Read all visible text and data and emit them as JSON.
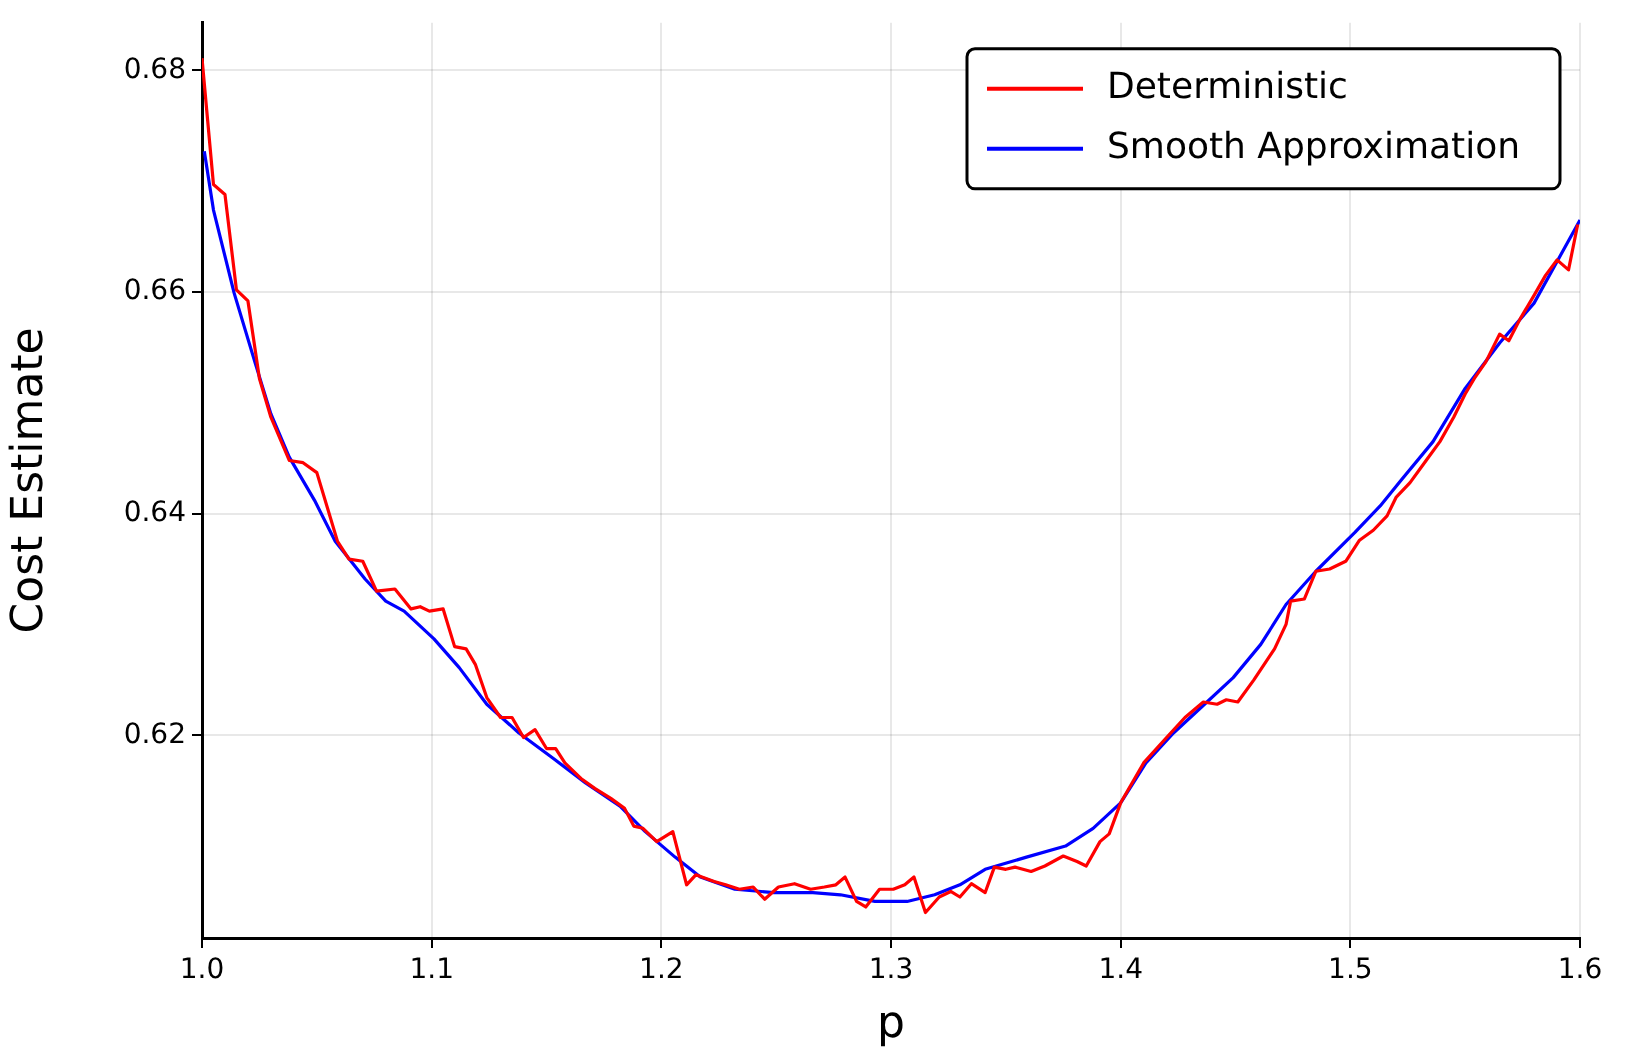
{
  "chart_data": {
    "type": "line",
    "xlabel": "p",
    "ylabel": "Cost Estimate",
    "xlim": [
      1.0,
      1.6
    ],
    "ylim": [
      0.6017,
      0.6843
    ],
    "xticks": [
      {
        "value": 1.0,
        "label": "1.0"
      },
      1.1,
      1.2,
      1.3,
      1.4,
      1.5,
      1.6
    ],
    "yticks": [
      0.62,
      0.64,
      0.66,
      0.68
    ],
    "grid": true,
    "legend": "top right",
    "marker": "none",
    "line_style": "solid",
    "series": [
      {
        "name": "Deterministic",
        "color": "#ff0000",
        "x": [
          1.0,
          1.005,
          1.01,
          1.015,
          1.02,
          1.025,
          1.03,
          1.038,
          1.044,
          1.05,
          1.059,
          1.064,
          1.07,
          1.076,
          1.084,
          1.091,
          1.095,
          1.099,
          1.105,
          1.11,
          1.115,
          1.119,
          1.124,
          1.13,
          1.135,
          1.14,
          1.145,
          1.15,
          1.154,
          1.158,
          1.165,
          1.171,
          1.178,
          1.184,
          1.188,
          1.192,
          1.198,
          1.205,
          1.211,
          1.215,
          1.223,
          1.228,
          1.234,
          1.24,
          1.245,
          1.251,
          1.258,
          1.265,
          1.271,
          1.276,
          1.28,
          1.285,
          1.289,
          1.295,
          1.301,
          1.306,
          1.31,
          1.315,
          1.321,
          1.326,
          1.33,
          1.335,
          1.341,
          1.345,
          1.35,
          1.354,
          1.361,
          1.367,
          1.375,
          1.381,
          1.385,
          1.391,
          1.395,
          1.4,
          1.41,
          1.42,
          1.428,
          1.436,
          1.442,
          1.446,
          1.451,
          1.458,
          1.467,
          1.472,
          1.474,
          1.48,
          1.485,
          1.491,
          1.498,
          1.504,
          1.51,
          1.516,
          1.52,
          1.526,
          1.533,
          1.539,
          1.545,
          1.55,
          1.554,
          1.559,
          1.565,
          1.569,
          1.574,
          1.58,
          1.585,
          1.59,
          1.595,
          1.599
        ],
        "values": [
          0.6811,
          0.6697,
          0.6688,
          0.6602,
          0.6592,
          0.6522,
          0.6487,
          0.6448,
          0.6446,
          0.6437,
          0.6375,
          0.6359,
          0.6357,
          0.633,
          0.6332,
          0.6314,
          0.6316,
          0.6312,
          0.6314,
          0.628,
          0.6278,
          0.6264,
          0.6234,
          0.6216,
          0.6216,
          0.6198,
          0.6205,
          0.6188,
          0.6188,
          0.6175,
          0.6161,
          0.6152,
          0.6143,
          0.6134,
          0.6118,
          0.6116,
          0.6104,
          0.6113,
          0.6065,
          0.6074,
          0.6068,
          0.6065,
          0.6061,
          0.6063,
          0.6052,
          0.6063,
          0.6066,
          0.6061,
          0.6063,
          0.6065,
          0.6072,
          0.605,
          0.6045,
          0.6061,
          0.6061,
          0.6065,
          0.6072,
          0.604,
          0.6054,
          0.6059,
          0.6054,
          0.6066,
          0.6058,
          0.6081,
          0.6079,
          0.6081,
          0.6077,
          0.6082,
          0.6091,
          0.6086,
          0.6082,
          0.6104,
          0.6111,
          0.6139,
          0.6175,
          0.6198,
          0.6216,
          0.623,
          0.6228,
          0.6232,
          0.623,
          0.625,
          0.6278,
          0.63,
          0.6321,
          0.6323,
          0.6348,
          0.635,
          0.6357,
          0.6376,
          0.6385,
          0.6398,
          0.6415,
          0.6428,
          0.6448,
          0.6465,
          0.6487,
          0.6508,
          0.6522,
          0.6537,
          0.6562,
          0.6556,
          0.6576,
          0.6597,
          0.6615,
          0.6629,
          0.662,
          0.6661
        ]
      },
      {
        "name": "Smooth Approximation",
        "color": "#0000ff",
        "x": [
          1.001,
          1.005,
          1.014,
          1.023,
          1.03,
          1.038,
          1.049,
          1.058,
          1.071,
          1.08,
          1.088,
          1.101,
          1.112,
          1.124,
          1.138,
          1.153,
          1.167,
          1.182,
          1.193,
          1.206,
          1.217,
          1.232,
          1.249,
          1.266,
          1.278,
          1.293,
          1.307,
          1.319,
          1.33,
          1.341,
          1.359,
          1.376,
          1.388,
          1.4,
          1.411,
          1.423,
          1.435,
          1.449,
          1.461,
          1.472,
          1.485,
          1.502,
          1.513,
          1.522,
          1.536,
          1.55,
          1.565,
          1.58,
          1.6
        ],
        "values": [
          0.6727,
          0.6674,
          0.6599,
          0.6537,
          0.649,
          0.6451,
          0.6412,
          0.6375,
          0.6341,
          0.6321,
          0.6312,
          0.6287,
          0.6261,
          0.6228,
          0.6202,
          0.6179,
          0.6157,
          0.6136,
          0.6113,
          0.609,
          0.6072,
          0.6061,
          0.6058,
          0.6058,
          0.6056,
          0.605,
          0.605,
          0.6056,
          0.6065,
          0.6079,
          0.609,
          0.61,
          0.6116,
          0.6139,
          0.6175,
          0.6202,
          0.6225,
          0.6252,
          0.6282,
          0.6318,
          0.6348,
          0.6383,
          0.6407,
          0.643,
          0.6465,
          0.6513,
          0.6554,
          0.659,
          0.6665
        ]
      }
    ]
  }
}
